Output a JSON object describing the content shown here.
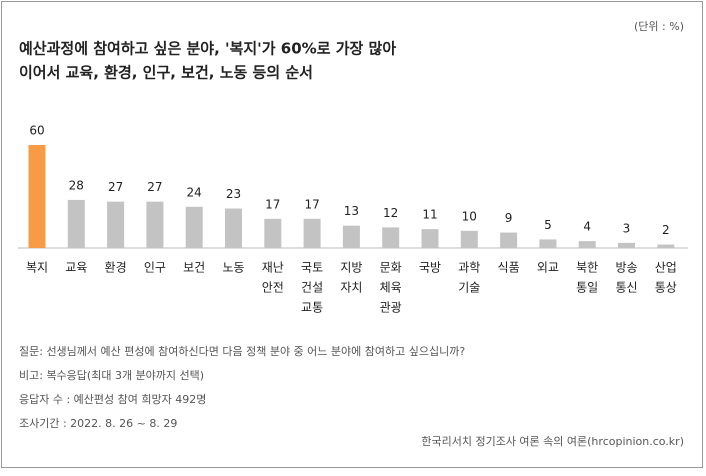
{
  "chart_data": {
    "type": "bar",
    "title": [
      "예산과정에 참여하고 싶은 분야, '복지'가 60%로 가장 많아",
      "이어서 교육, 환경, 인구, 보건, 노동 등의 순서"
    ],
    "unit": "(단위 : %)",
    "categories": [
      [
        "복지"
      ],
      [
        "교육"
      ],
      [
        "환경"
      ],
      [
        "인구"
      ],
      [
        "보건"
      ],
      [
        "노동"
      ],
      [
        "재난",
        "안전"
      ],
      [
        "국토",
        "건설",
        "교통"
      ],
      [
        "지방",
        "자치"
      ],
      [
        "문화",
        "체육",
        "관광"
      ],
      [
        "국방"
      ],
      [
        "과학",
        "기술"
      ],
      [
        "식품"
      ],
      [
        "외교"
      ],
      [
        "북한",
        "통일"
      ],
      [
        "방송",
        "통신"
      ],
      [
        "산업",
        "통상"
      ]
    ],
    "values": [
      60,
      28,
      27,
      27,
      24,
      23,
      17,
      17,
      13,
      12,
      11,
      10,
      9,
      5,
      4,
      3,
      2
    ],
    "colors": [
      "#f79b45",
      "#c3c3c3",
      "#c3c3c3",
      "#c3c3c3",
      "#c3c3c3",
      "#c3c3c3",
      "#c3c3c3",
      "#c3c3c3",
      "#c3c3c3",
      "#c3c3c3",
      "#c3c3c3",
      "#c3c3c3",
      "#c3c3c3",
      "#c3c3c3",
      "#c3c3c3",
      "#c3c3c3",
      "#c3c3c3"
    ],
    "notes": [
      "질문: 선생님께서 예산 편성에 참여하신다면 다음 정책 분야 중 어느 분야에 참여하고 싶으십니까?",
      "비고: 복수응답(최대 3개 분야까지 선택)",
      "응답자 수 : 예산편성 참여 희망자 492명",
      "조사기간 : 2022. 8. 26 ~ 8. 29"
    ],
    "source": "한국리서치 정기조사 여론 속의 여론(hrcopinion.co.kr)"
  }
}
